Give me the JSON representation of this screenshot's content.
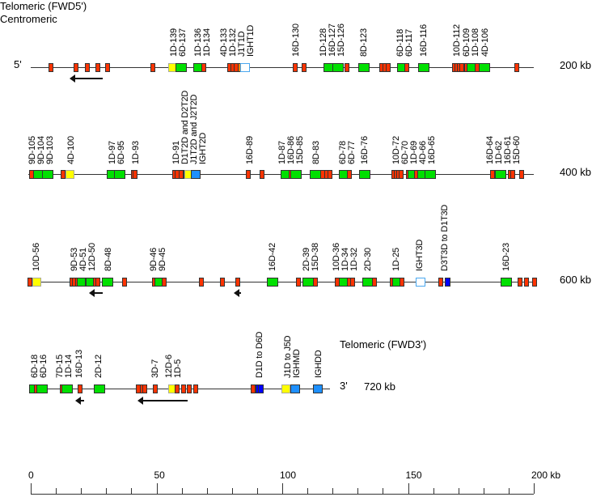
{
  "header": {
    "telomeric_5": "Telomeric (FWD5')",
    "centromeric": "Centromeric",
    "telomeric_3": "Telomeric (FWD3')"
  },
  "colors": {
    "V_functional": "#00e000",
    "V_pseudogene": "#ff3300",
    "V_orf": "#ffff00",
    "D_segment": "#0000ff",
    "constant": "#1e90ff",
    "orange": "#ff8000"
  },
  "rows": [
    {
      "end_label": "5'",
      "kb_label": "200 kb",
      "labels": [
        "1D-139",
        "6D-137",
        "1D-136",
        "1D-134",
        "4D-133",
        "1D-132",
        "J1T1D",
        "IGHT1D",
        "16D-130",
        "1D-128",
        "16D-127",
        "15D-126",
        "8D-123",
        "6D-118",
        "6D-117",
        "16D-116",
        "10D-112",
        "6D-109",
        "1D-108",
        "4D-106"
      ]
    },
    {
      "kb_label": "400 kb",
      "labels": [
        "9D-105",
        "9D-104",
        "9D-103",
        "4D-100",
        "1D-97",
        "6D-95",
        "1D-93",
        "1D-91",
        "D1T2D and D2T2D",
        "J1T2D and J2T2D",
        "IGHT2D",
        "16D-89",
        "1D-87",
        "16D-86",
        "15D-85",
        "8D-83",
        "6D-78",
        "6D-77",
        "16D-76",
        "10D-72",
        "6D-70",
        "1D-69",
        "4D-66",
        "16D-65",
        "16D-64",
        "1D-62",
        "16D-61",
        "15D-60"
      ]
    },
    {
      "kb_label": "600 kb",
      "labels": [
        "10D-56",
        "9D-53",
        "4D-51",
        "12D-50",
        "8D-48",
        "9D-46",
        "9D-45",
        "16D-42",
        "2D-39",
        "15D-38",
        "10D-36",
        "1D-34",
        "1D-32",
        "2D-30",
        "1D-25",
        "IGHT3D",
        "D3T3D to D1T3D",
        "16D-23"
      ]
    },
    {
      "end_label": "3'",
      "kb_label": "720 kb",
      "labels": [
        "6D-18",
        "6D-16",
        "7D-15",
        "1D-14",
        "16D-13",
        "2D-12",
        "3D-7",
        "12D-6",
        "1D-5",
        "D1D to D6D",
        "J1D to J5D",
        "IGHMD",
        "IGHDD"
      ]
    }
  ],
  "scale": {
    "ticks": [
      "0",
      "50",
      "100",
      "150",
      "200 kb"
    ],
    "min": 0,
    "max": 200,
    "minor_step": 10
  }
}
